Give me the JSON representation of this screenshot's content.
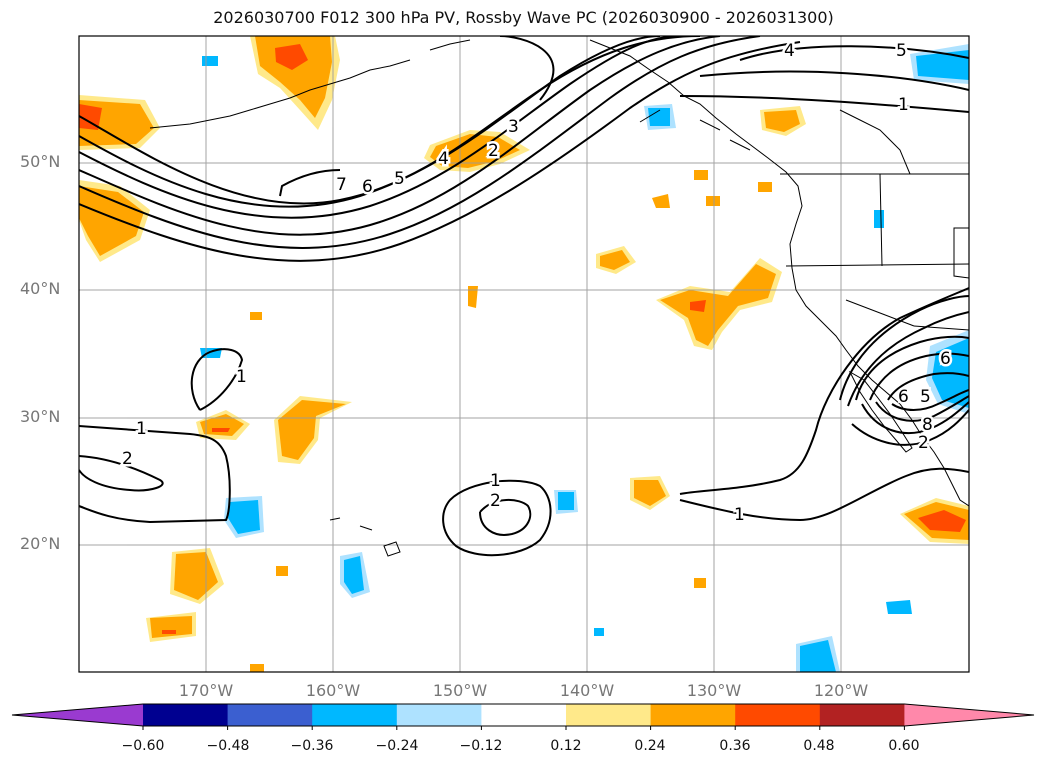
{
  "title": "2026030700 F012 300 hPa PV, Rossby Wave PC (2026030900 - 2026031300)",
  "lat_labels": [
    "50°N",
    "40°N",
    "30°N",
    "20°N"
  ],
  "lon_labels": [
    "170°W",
    "160°W",
    "150°W",
    "140°W",
    "130°W",
    "120°W"
  ],
  "colorbar": {
    "colors": [
      "#9a3ad0",
      "#000090",
      "#3b5fd0",
      "#00b8ff",
      "#aee2ff",
      "#ffffff",
      "#ffe98a",
      "#ffa500",
      "#ff4a00",
      "#b22222",
      "#ff88aa"
    ],
    "ticks": [
      "−0.60",
      "−0.48",
      "−0.36",
      "−0.24",
      "−0.12",
      "0.12",
      "0.24",
      "0.36",
      "0.48",
      "0.60"
    ]
  },
  "contour_labels": [
    "1",
    "1",
    "1",
    "1",
    "1",
    "2",
    "2",
    "2",
    "2",
    "3",
    "4",
    "4",
    "5",
    "5",
    "7",
    "6",
    "5",
    "6",
    "6",
    "8"
  ]
}
